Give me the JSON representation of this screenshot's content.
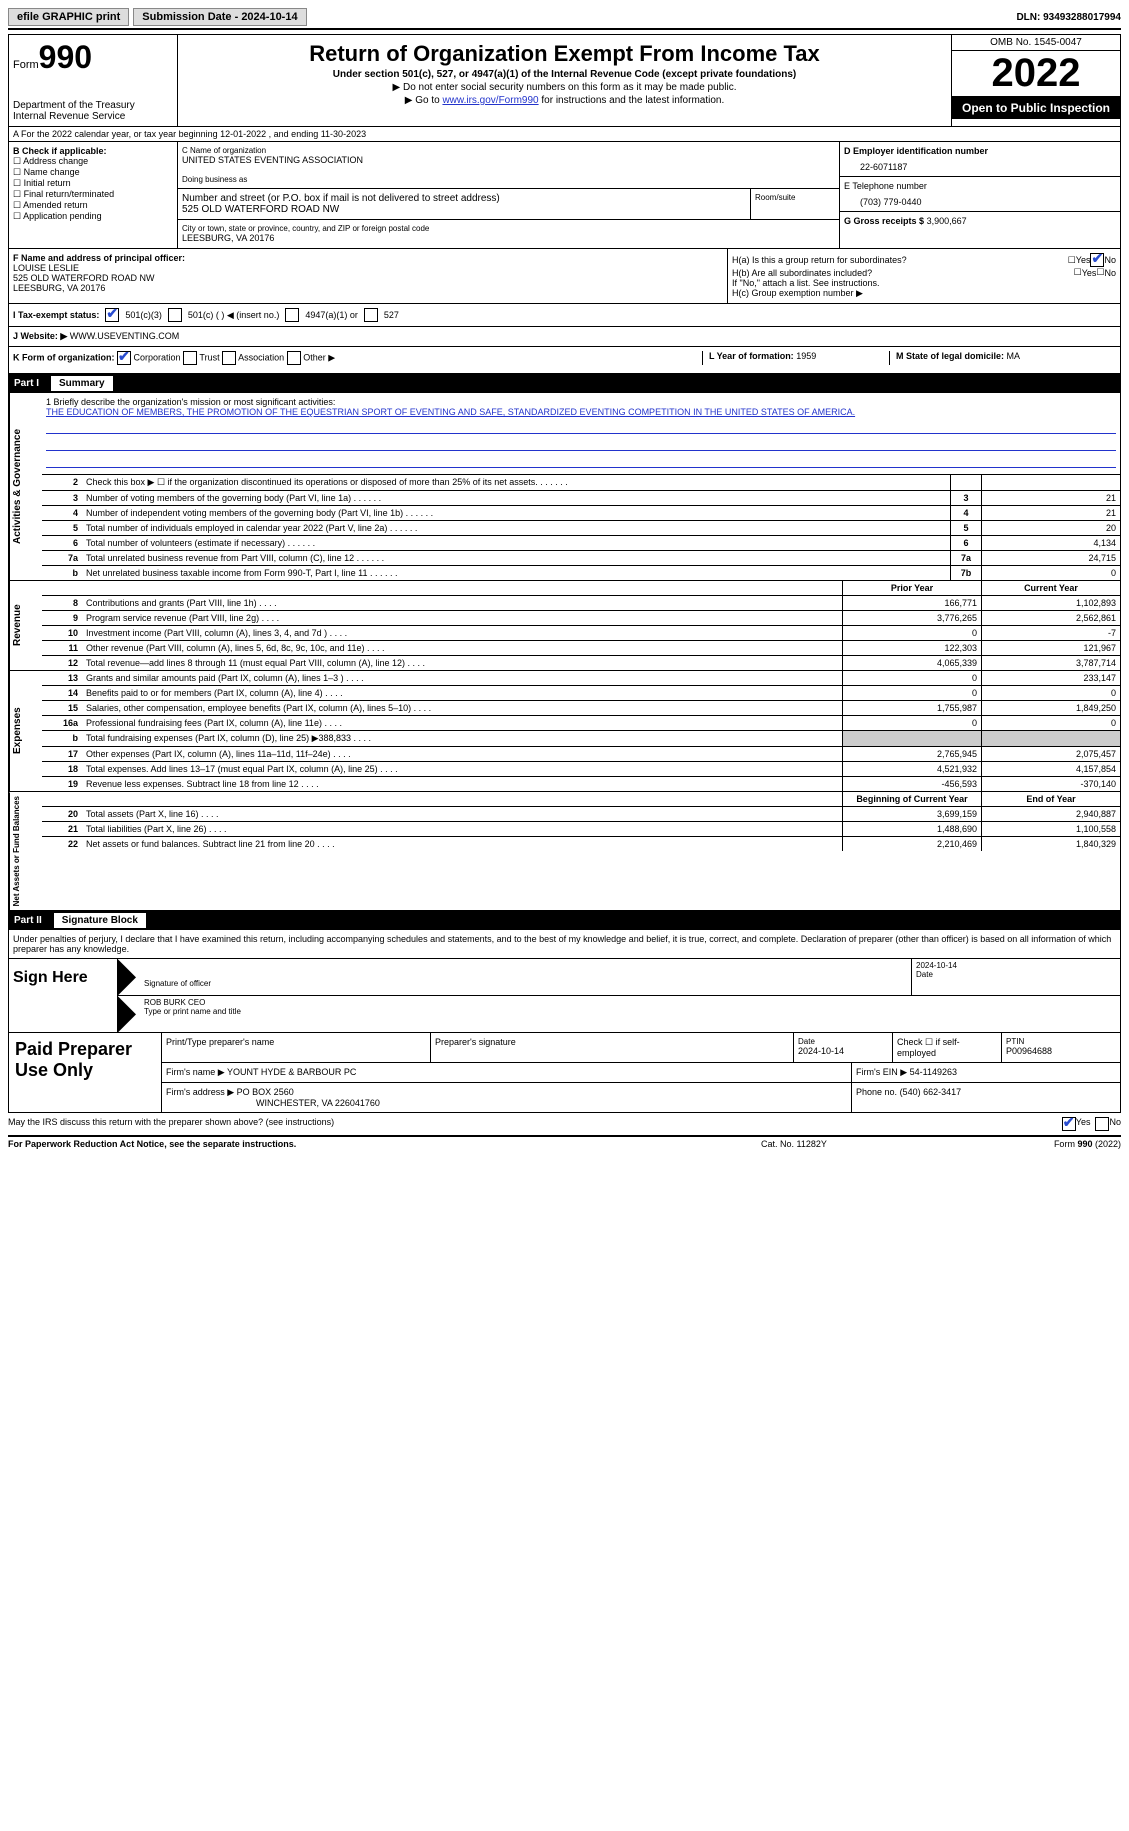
{
  "topbar": {
    "efile": "efile GRAPHIC print",
    "submission": "Submission Date - 2024-10-14",
    "dln_label": "DLN:",
    "dln": "93493288017994"
  },
  "header": {
    "form_label": "Form",
    "form_num": "990",
    "dept1": "Department of the Treasury",
    "dept2": "Internal Revenue Service",
    "title": "Return of Organization Exempt From Income Tax",
    "subtitle": "Under section 501(c), 527, or 4947(a)(1) of the Internal Revenue Code (except private foundations)",
    "line1": "▶ Do not enter social security numbers on this form as it may be made public.",
    "line2a": "▶ Go to ",
    "line2link": "www.irs.gov/Form990",
    "line2b": " for instructions and the latest information.",
    "omb": "OMB No. 1545-0047",
    "year": "2022",
    "open_insp": "Open to Public Inspection"
  },
  "row_a": "A For the 2022 calendar year, or tax year beginning 12-01-2022   , and ending 11-30-2023",
  "col_b": {
    "title": "B Check if applicable:",
    "items": [
      "Address change",
      "Name change",
      "Initial return",
      "Final return/terminated",
      "Amended return",
      "Application pending"
    ]
  },
  "col_c": {
    "name_lab": "C Name of organization",
    "name": "UNITED STATES EVENTING ASSOCIATION",
    "dba_lab": "Doing business as",
    "street_lab": "Number and street (or P.O. box if mail is not delivered to street address)",
    "street": "525 OLD WATERFORD ROAD NW",
    "room_lab": "Room/suite",
    "city_lab": "City or town, state or province, country, and ZIP or foreign postal code",
    "city": "LEESBURG, VA  20176"
  },
  "col_d": {
    "ein_lab": "D Employer identification number",
    "ein": "22-6071187",
    "phone_lab": "E Telephone number",
    "phone": "(703) 779-0440",
    "gross_lab": "G Gross receipts $",
    "gross": "3,900,667"
  },
  "section_f": {
    "lab": "F Name and address of principal officer:",
    "name": "LOUISE LESLIE",
    "addr1": "525 OLD WATERFORD ROAD NW",
    "addr2": "LEESBURG, VA  20176",
    "h_a": "H(a)  Is this a group return for subordinates?",
    "h_b": "H(b)  Are all subordinates included?",
    "h_note": "If \"No,\" attach a list. See instructions.",
    "h_c": "H(c)  Group exemption number ▶",
    "yes": "Yes",
    "no": "No"
  },
  "row_i": {
    "lab": "I   Tax-exempt status:",
    "opt1": "501(c)(3)",
    "opt2": "501(c) (  ) ◀ (insert no.)",
    "opt3": "4947(a)(1) or",
    "opt4": "527"
  },
  "row_j": {
    "lab": "J   Website: ▶",
    "val": "WWW.USEVENTING.COM"
  },
  "row_k": {
    "lab": "K Form of organization:",
    "opts": [
      "Corporation",
      "Trust",
      "Association",
      "Other ▶"
    ],
    "l_lab": "L Year of formation:",
    "l_val": "1959",
    "m_lab": "M State of legal domicile:",
    "m_val": "MA"
  },
  "part1": {
    "num": "Part I",
    "title": "Summary"
  },
  "mission": {
    "lab": "1  Briefly describe the organization's mission or most significant activities:",
    "text": "THE EDUCATION OF MEMBERS, THE PROMOTION OF THE EQUESTRIAN SPORT OF EVENTING AND SAFE, STANDARDIZED EVENTING COMPETITION IN THE UNITED STATES OF AMERICA."
  },
  "sum_rows_ag": [
    {
      "n": "2",
      "l": "Check this box ▶ ☐ if the organization discontinued its operations or disposed of more than 25% of its net assets.",
      "b": "",
      "v": ""
    },
    {
      "n": "3",
      "l": "Number of voting members of the governing body (Part VI, line 1a)",
      "b": "3",
      "v": "21"
    },
    {
      "n": "4",
      "l": "Number of independent voting members of the governing body (Part VI, line 1b)",
      "b": "4",
      "v": "21"
    },
    {
      "n": "5",
      "l": "Total number of individuals employed in calendar year 2022 (Part V, line 2a)",
      "b": "5",
      "v": "20"
    },
    {
      "n": "6",
      "l": "Total number of volunteers (estimate if necessary)",
      "b": "6",
      "v": "4,134"
    },
    {
      "n": "7a",
      "l": "Total unrelated business revenue from Part VIII, column (C), line 12",
      "b": "7a",
      "v": "24,715"
    },
    {
      "n": "b",
      "l": "Net unrelated business taxable income from Form 990-T, Part I, line 11",
      "b": "7b",
      "v": "0"
    }
  ],
  "two_col_header": {
    "py": "Prior Year",
    "cy": "Current Year"
  },
  "revenue_rows": [
    {
      "n": "8",
      "l": "Contributions and grants (Part VIII, line 1h)",
      "py": "166,771",
      "cy": "1,102,893"
    },
    {
      "n": "9",
      "l": "Program service revenue (Part VIII, line 2g)",
      "py": "3,776,265",
      "cy": "2,562,861"
    },
    {
      "n": "10",
      "l": "Investment income (Part VIII, column (A), lines 3, 4, and 7d )",
      "py": "0",
      "cy": "-7"
    },
    {
      "n": "11",
      "l": "Other revenue (Part VIII, column (A), lines 5, 6d, 8c, 9c, 10c, and 11e)",
      "py": "122,303",
      "cy": "121,967"
    },
    {
      "n": "12",
      "l": "Total revenue—add lines 8 through 11 (must equal Part VIII, column (A), line 12)",
      "py": "4,065,339",
      "cy": "3,787,714"
    }
  ],
  "expense_rows": [
    {
      "n": "13",
      "l": "Grants and similar amounts paid (Part IX, column (A), lines 1–3 )",
      "py": "0",
      "cy": "233,147"
    },
    {
      "n": "14",
      "l": "Benefits paid to or for members (Part IX, column (A), line 4)",
      "py": "0",
      "cy": "0"
    },
    {
      "n": "15",
      "l": "Salaries, other compensation, employee benefits (Part IX, column (A), lines 5–10)",
      "py": "1,755,987",
      "cy": "1,849,250"
    },
    {
      "n": "16a",
      "l": "Professional fundraising fees (Part IX, column (A), line 11e)",
      "py": "0",
      "cy": "0"
    },
    {
      "n": "b",
      "l": "Total fundraising expenses (Part IX, column (D), line 25) ▶388,833",
      "py": "",
      "cy": "",
      "gray": true
    },
    {
      "n": "17",
      "l": "Other expenses (Part IX, column (A), lines 11a–11d, 11f–24e)",
      "py": "2,765,945",
      "cy": "2,075,457"
    },
    {
      "n": "18",
      "l": "Total expenses. Add lines 13–17 (must equal Part IX, column (A), line 25)",
      "py": "4,521,932",
      "cy": "4,157,854"
    },
    {
      "n": "19",
      "l": "Revenue less expenses. Subtract line 18 from line 12",
      "py": "-456,593",
      "cy": "-370,140"
    }
  ],
  "na_header": {
    "bcy": "Beginning of Current Year",
    "eoy": "End of Year"
  },
  "na_rows": [
    {
      "n": "20",
      "l": "Total assets (Part X, line 16)",
      "py": "3,699,159",
      "cy": "2,940,887"
    },
    {
      "n": "21",
      "l": "Total liabilities (Part X, line 26)",
      "py": "1,488,690",
      "cy": "1,100,558"
    },
    {
      "n": "22",
      "l": "Net assets or fund balances. Subtract line 21 from line 20",
      "py": "2,210,469",
      "cy": "1,840,329"
    }
  ],
  "sides": {
    "ag": "Activities & Governance",
    "rev": "Revenue",
    "exp": "Expenses",
    "na": "Net Assets or Fund Balances"
  },
  "part2": {
    "num": "Part II",
    "title": "Signature Block"
  },
  "penalties": "Under penalties of perjury, I declare that I have examined this return, including accompanying schedules and statements, and to the best of my knowledge and belief, it is true, correct, and complete. Declaration of preparer (other than officer) is based on all information of which preparer has any knowledge.",
  "sign": {
    "here": "Sign Here",
    "sig_lab": "Signature of officer",
    "date": "2024-10-14",
    "date_lab": "Date",
    "name": "ROB BURK CEO",
    "name_lab": "Type or print name and title"
  },
  "paid": {
    "title": "Paid Preparer Use Only",
    "h1": "Print/Type preparer's name",
    "h2": "Preparer's signature",
    "h3_lab": "Date",
    "h3": "2024-10-14",
    "h4": "Check ☐ if self-employed",
    "h5_lab": "PTIN",
    "h5": "P00964688",
    "firm_lab": "Firm's name   ▶",
    "firm": "YOUNT HYDE & BARBOUR PC",
    "ein_lab": "Firm's EIN ▶",
    "ein": "54-1149263",
    "addr_lab": "Firm's address ▶",
    "addr1": "PO BOX 2560",
    "addr2": "WINCHESTER, VA  226041760",
    "phone_lab": "Phone no.",
    "phone": "(540) 662-3417"
  },
  "discuss": {
    "q": "May the IRS discuss this return with the preparer shown above? (see instructions)",
    "yes": "Yes",
    "no": "No"
  },
  "footer": {
    "pra": "For Paperwork Reduction Act Notice, see the separate instructions.",
    "cat": "Cat. No. 11282Y",
    "form": "Form 990 (2022)"
  },
  "colors": {
    "link": "#2233cc",
    "black": "#000000",
    "gray": "#cccccc"
  }
}
